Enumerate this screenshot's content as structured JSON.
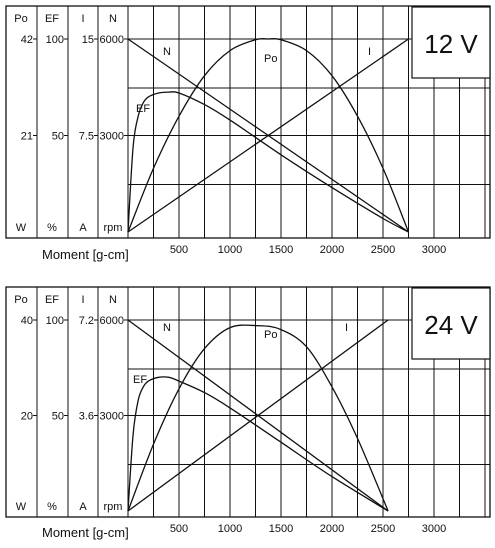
{
  "colors": {
    "line": "#111111",
    "background": "#ffffff"
  },
  "chart_data": [
    {
      "type": "line",
      "title": "12 V",
      "xlabel": "Moment [g-cm]",
      "xlim": [
        0,
        3500
      ],
      "x_ticks": [
        500,
        1000,
        1500,
        2000,
        2500,
        3000
      ],
      "grid": true,
      "left_axes": [
        {
          "header": "Po",
          "unit": "W",
          "ticks": [
            "42",
            "21"
          ]
        },
        {
          "header": "EF",
          "unit": "%",
          "ticks": [
            "100",
            "50"
          ]
        },
        {
          "header": "I",
          "unit": "A",
          "ticks": [
            "15",
            "7.5"
          ]
        },
        {
          "header": "N",
          "unit": "rpm",
          "ticks": [
            "6000",
            "3000"
          ]
        }
      ],
      "series": [
        {
          "name": "N",
          "x": [
            0,
            2750
          ],
          "y_rel": [
            1.0,
            0.0
          ]
        },
        {
          "name": "I",
          "x": [
            0,
            2750
          ],
          "y_rel": [
            0.0,
            1.0
          ]
        },
        {
          "name": "Po",
          "x": [
            0,
            250,
            500,
            750,
            1000,
            1250,
            1375,
            1500,
            1750,
            2000,
            2250,
            2500,
            2750
          ],
          "y_rel": [
            0.0,
            0.33,
            0.6,
            0.81,
            0.94,
            0.996,
            1.0,
            0.996,
            0.94,
            0.81,
            0.6,
            0.33,
            0.0
          ]
        },
        {
          "name": "EF",
          "x": [
            0,
            50,
            100,
            150,
            200,
            300,
            400,
            500,
            750,
            1000,
            1500,
            2000,
            2500,
            2750
          ],
          "y_rel": [
            0.0,
            0.44,
            0.6,
            0.67,
            0.7,
            0.72,
            0.725,
            0.72,
            0.66,
            0.58,
            0.4,
            0.23,
            0.07,
            0.0
          ]
        }
      ]
    },
    {
      "type": "line",
      "title": "24 V",
      "xlabel": "Moment [g-cm]",
      "xlim": [
        0,
        3500
      ],
      "x_ticks": [
        500,
        1000,
        1500,
        2000,
        2500,
        3000
      ],
      "grid": true,
      "left_axes": [
        {
          "header": "Po",
          "unit": "W",
          "ticks": [
            "40",
            "20"
          ]
        },
        {
          "header": "EF",
          "unit": "%",
          "ticks": [
            "100",
            "50"
          ]
        },
        {
          "header": "I",
          "unit": "A",
          "ticks": [
            "7.2",
            "3.6"
          ]
        },
        {
          "header": "N",
          "unit": "rpm",
          "ticks": [
            "6000",
            "3000"
          ]
        }
      ],
      "series": [
        {
          "name": "N",
          "x": [
            0,
            2550
          ],
          "y_rel": [
            1.0,
            0.0
          ]
        },
        {
          "name": "I",
          "x": [
            0,
            2550
          ],
          "y_rel": [
            0.0,
            1.0
          ]
        },
        {
          "name": "Po",
          "x": [
            0,
            250,
            500,
            750,
            1000,
            1275,
            1500,
            1750,
            2000,
            2250,
            2550
          ],
          "y_rel": [
            0.0,
            0.35,
            0.64,
            0.85,
            0.96,
            0.97,
            0.95,
            0.86,
            0.65,
            0.38,
            0.0
          ]
        },
        {
          "name": "EF",
          "x": [
            0,
            50,
            100,
            150,
            200,
            300,
            400,
            500,
            750,
            1000,
            1500,
            2000,
            2550
          ],
          "y_rel": [
            0.0,
            0.4,
            0.58,
            0.65,
            0.68,
            0.7,
            0.7,
            0.68,
            0.62,
            0.54,
            0.36,
            0.18,
            0.0
          ]
        }
      ]
    }
  ]
}
